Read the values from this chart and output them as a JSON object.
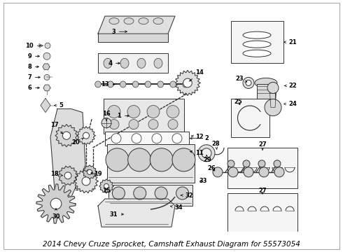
{
  "title": "2014 Chevy Cruze Sprocket, Camshaft Exhaust Diagram for 55573054",
  "background_color": "#ffffff",
  "caption": "2014 Chevy Cruze Sprocket, Camshaft Exhaust Diagram for 55573054",
  "fig_width": 4.9,
  "fig_height": 3.6,
  "dpi": 100,
  "line_color": "#333333",
  "line_width": 0.7,
  "label_fontsize": 6.0,
  "caption_fontsize": 7.5
}
